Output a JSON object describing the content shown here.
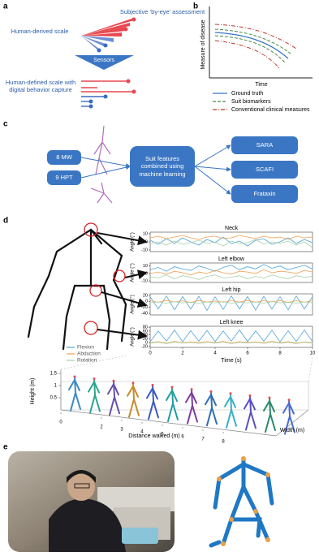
{
  "panels": {
    "a": {
      "label": "a",
      "top_text": "Subjective ‘by-eye’ assessment",
      "left_top": "Human-derived scale",
      "arrow": "Sensors",
      "left_bottom": "Human-defined scale with digital behavior capture"
    },
    "b": {
      "label": "b",
      "y_axis": "Measure of disease",
      "x_axis": "Time",
      "legend": [
        {
          "name": "Ground truth",
          "color": "#3b76c4",
          "dash": "none"
        },
        {
          "name": "Suit biomarkers",
          "color": "#4a8a4a",
          "dash": "4 2"
        },
        {
          "name": "Conventional clinical measures",
          "color": "#c0392b",
          "dash": "5 2 1 2"
        }
      ]
    },
    "c": {
      "label": "c",
      "inputs": [
        "8 MW",
        "9 HPT"
      ],
      "model": "Suit features combined using machine learning",
      "outputs": [
        "SARA",
        "SCAFI",
        "Frataxin"
      ]
    },
    "d": {
      "label": "d",
      "series": [
        {
          "name": "Flexion",
          "color": "#4fa3d9"
        },
        {
          "name": "Abduction",
          "color": "#f0a050"
        },
        {
          "name": "Rotation",
          "color": "#a8d0a8"
        }
      ],
      "time": [
        0,
        0.5,
        1,
        1.5,
        2,
        2.5,
        3,
        3.5,
        4,
        4.5,
        5,
        5.5,
        6,
        6.5,
        7,
        7.5,
        8,
        8.5,
        9,
        9.5,
        10
      ],
      "xlim": [
        0,
        10
      ],
      "xticks": [
        0,
        2,
        4,
        6,
        8,
        10
      ],
      "xlabel": "Time (s)",
      "plots": [
        {
          "title": "Neck",
          "ylabel": "Angle (°)",
          "ylim": [
            -12,
            12
          ],
          "yticks": [
            -10,
            0,
            10
          ],
          "values": [
            [
              2,
              -3,
              4,
              -2,
              5,
              0,
              -4,
              3,
              -1,
              6,
              -2,
              1,
              -5,
              2,
              4,
              -3,
              0,
              5,
              -2,
              3,
              -1
            ],
            [
              5,
              7,
              4,
              6,
              8,
              5,
              3,
              6,
              7,
              4,
              5,
              8,
              6,
              4,
              7,
              5,
              6,
              3,
              7,
              5,
              6
            ],
            [
              -2,
              0,
              -4,
              1,
              -3,
              -1,
              2,
              -2,
              0,
              -5,
              1,
              -2,
              -1,
              3,
              -3,
              0,
              -2,
              1,
              -4,
              0,
              -7
            ]
          ]
        },
        {
          "title": "Left elbow",
          "ylabel": "Angle (°)",
          "ylim": [
            -12,
            14
          ],
          "yticks": [
            -10,
            0,
            10
          ],
          "values": [
            [
              5,
              8,
              3,
              9,
              6,
              4,
              10,
              7,
              3,
              8,
              11,
              5,
              9,
              6,
              12,
              7,
              10,
              5,
              8,
              11,
              6
            ],
            [
              0,
              2,
              -1,
              3,
              1,
              -2,
              2,
              0,
              4,
              1,
              -1,
              3,
              2,
              0,
              5,
              1,
              3,
              2,
              0,
              4,
              2
            ],
            [
              -4,
              -6,
              -2,
              -7,
              -3,
              -5,
              -8,
              -4,
              -2,
              -6,
              -5,
              -3,
              -7,
              -4,
              -6,
              -2,
              -5,
              -7,
              -3,
              -5,
              -4
            ]
          ]
        },
        {
          "title": "Left hip",
          "ylabel": "Angle (°)",
          "ylim": [
            -45,
            25
          ],
          "yticks": [
            -40,
            -20,
            0,
            20
          ],
          "values": [
            [
              15,
              -25,
              18,
              -28,
              16,
              -26,
              17,
              -30,
              15,
              -27,
              18,
              -25,
              16,
              -29,
              17,
              -26,
              15,
              -28,
              18,
              -25,
              16
            ],
            [
              2,
              -3,
              3,
              -2,
              2,
              -4,
              3,
              -2,
              1,
              -3,
              2,
              -2,
              3,
              -3,
              2,
              -2,
              3,
              -4,
              2,
              -3,
              2
            ],
            [
              -5,
              -2,
              -6,
              -1,
              -5,
              -3,
              -6,
              -2,
              -5,
              -1,
              -6,
              -3,
              -5,
              -2,
              -6,
              -1,
              -5,
              -3,
              -6,
              -2,
              -5
            ]
          ]
        },
        {
          "title": "Left knee",
          "ylabel": "Angle (°)",
          "ylim": [
            -25,
            85
          ],
          "yticks": [
            -20,
            0,
            20,
            40,
            60,
            80
          ],
          "values": [
            [
              5,
              60,
              8,
              65,
              4,
              62,
              7,
              63,
              5,
              60,
              8,
              66,
              5,
              61,
              7,
              64,
              4,
              62,
              6,
              65,
              5
            ],
            [
              0,
              5,
              -2,
              6,
              0,
              4,
              -1,
              5,
              0,
              6,
              -2,
              5,
              1,
              4,
              -1,
              6,
              0,
              5,
              -2,
              4,
              0
            ],
            [
              -3,
              2,
              -5,
              3,
              -2,
              1,
              -4,
              2,
              -3,
              3,
              -5,
              1,
              -2,
              2,
              -4,
              3,
              -3,
              1,
              -5,
              2,
              -3
            ]
          ]
        }
      ],
      "walk": {
        "height_label": "Height (m)",
        "height_ticks": [
          0.5,
          1,
          1.5
        ],
        "distance_label": "Distance walked (m)",
        "distance_ticks": [
          0,
          2,
          3,
          4,
          5,
          6,
          7,
          8
        ],
        "width_label": "Width (m)"
      }
    },
    "e": {
      "label": "e"
    }
  }
}
